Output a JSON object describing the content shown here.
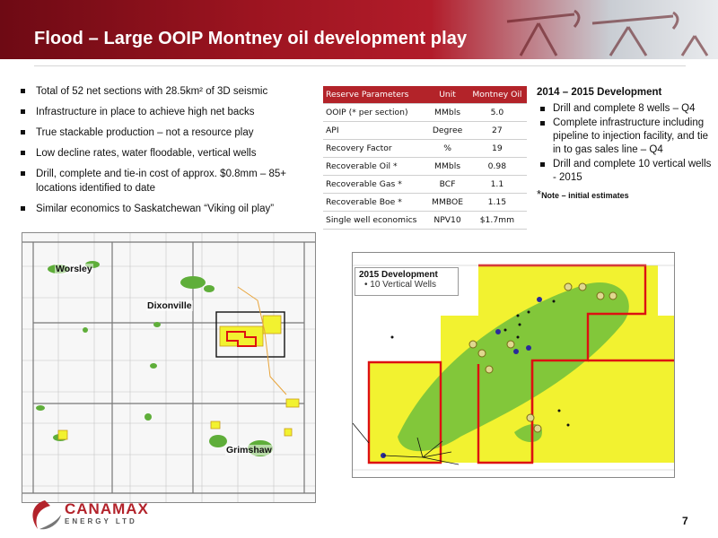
{
  "title": "Flood – Large OOIP Montney oil development play",
  "bullets": [
    "Total of 52 net sections with 28.5km² of 3D seismic",
    "Infrastructure in place to achieve high net backs",
    "True stackable production – not a resource play",
    "Low decline rates, water floodable, vertical wells",
    "Drill, complete and tie-in cost of approx. $0.8mm – 85+ locations identified to date",
    "Similar economics to Saskatchewan “Viking oil play”"
  ],
  "reserve_table": {
    "headers": [
      "Reserve Parameters",
      "Unit",
      "Montney Oil"
    ],
    "rows": [
      [
        "OOIP (* per section)",
        "MMbls",
        "5.0"
      ],
      [
        "API",
        "Degree",
        "27"
      ],
      [
        "Recovery Factor",
        "%",
        "19"
      ],
      [
        "Recoverable Oil *",
        "MMbls",
        "0.98"
      ],
      [
        "Recoverable Gas *",
        "BCF",
        "1.1"
      ],
      [
        "Recoverable Boe *",
        "MMBOE",
        "1.15"
      ],
      [
        "Single well economics",
        "NPV10",
        "$1.7mm"
      ]
    ]
  },
  "development": {
    "heading": "2014 – 2015 Development",
    "items": [
      "Drill and complete 8 wells – Q4",
      "Complete infrastructure including pipeline to injection facility, and tie in to gas sales line – Q4",
      "Drill and complete 10 vertical wells - 2015"
    ],
    "note_star": "*",
    "note_text": "Note – initial estimates"
  },
  "map_left_labels": {
    "worsley": "Worsley",
    "dixonville": "Dixonville",
    "grimshaw": "Grimshaw"
  },
  "map_right_legend": {
    "title": "2015 Development",
    "item": "10 Vertical Wells"
  },
  "logo": {
    "word": "CANAMAX",
    "sub": "ENERGY LTD"
  },
  "page_number": "7",
  "colors": {
    "brand_red": "#b3232b",
    "table_header": "#b32329",
    "lease_yellow": "#f2f230",
    "pool_green": "#6fbf3c"
  }
}
